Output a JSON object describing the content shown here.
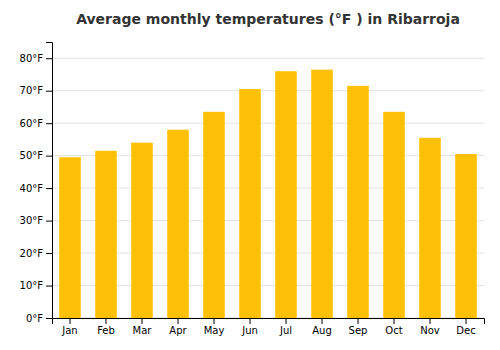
{
  "chart_data": {
    "type": "bar",
    "title": "Average monthly temperatures (°F ) in Ribarroja",
    "categories": [
      "Jan",
      "Feb",
      "Mar",
      "Apr",
      "May",
      "Jun",
      "Jul",
      "Aug",
      "Sep",
      "Oct",
      "Nov",
      "Dec"
    ],
    "values": [
      49.5,
      51.5,
      54.0,
      58.0,
      63.5,
      70.5,
      76.0,
      76.5,
      71.5,
      63.5,
      55.5,
      50.5
    ],
    "color": "#FFC107",
    "ylim": [
      0,
      85
    ],
    "yticks": [
      {
        "value": 0,
        "label": "0°F"
      },
      {
        "value": 10,
        "label": "10°F"
      },
      {
        "value": 20,
        "label": "20°F"
      },
      {
        "value": 30,
        "label": "30°F"
      },
      {
        "value": 40,
        "label": "40°F"
      },
      {
        "value": 50,
        "label": "50°F"
      },
      {
        "value": 60,
        "label": "60°F"
      },
      {
        "value": 70,
        "label": "70°F"
      },
      {
        "value": 80,
        "label": "80°F"
      }
    ],
    "grid": true
  }
}
